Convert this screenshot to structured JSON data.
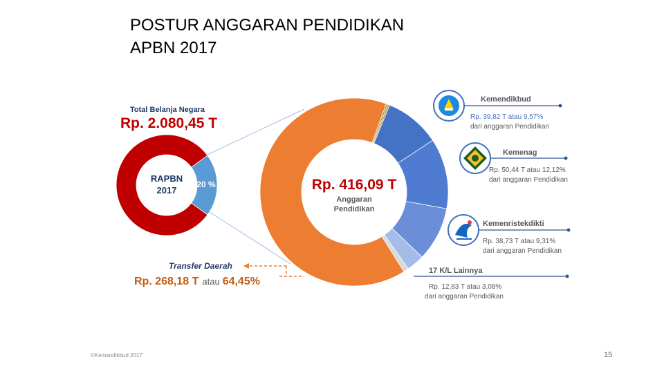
{
  "title": {
    "line1": "POSTUR ANGGARAN PENDIDIKAN",
    "line2": "APBN 2017"
  },
  "colors": {
    "red": "#C00000",
    "light_blue": "#5B9BD5",
    "orange": "#ED7D31",
    "blue1": "#4472C4",
    "blue2": "#4F7BD0",
    "blue3": "#6A8FD8",
    "blue4": "#A4BCE8",
    "navy": "#1F3864",
    "label_orange": "#C55A11",
    "label_blue": "#4472C4",
    "gray_text": "#595959",
    "green_sliver": "#70AD47"
  },
  "chart_data": [
    {
      "type": "pie",
      "subtype": "donut",
      "title": "Total Belanja Negara",
      "title_value": "Rp. 2.080,45 T",
      "center_label": [
        "RAPBN",
        "2017"
      ],
      "slices": [
        {
          "label": "",
          "value": 80
        },
        {
          "label": "20 %",
          "value": 20
        }
      ]
    },
    {
      "type": "pie",
      "subtype": "donut",
      "center_value": "Rp. 416,09 T",
      "center_label": [
        "Anggaran",
        "Pendidikan"
      ],
      "slices": [
        {
          "name": "Transfer Daerah",
          "value": 64.45
        },
        {
          "name": "",
          "value": 0.3
        },
        {
          "name": "",
          "value": 0.3
        },
        {
          "name": "Kemendikbud",
          "value": 9.57
        },
        {
          "name": "Kemenag",
          "value": 12.12
        },
        {
          "name": "Kemenristekdikti",
          "value": 9.31
        },
        {
          "name": "17 K/L Lainnya",
          "value": 3.08
        },
        {
          "name": "",
          "value": 0.87
        }
      ]
    }
  ],
  "callouts": {
    "kemendikbud": {
      "name": "Kemendikbud",
      "line1": "Rp. 39,82 T atau 9,57%",
      "line2": "dari anggaran Pendidikan"
    },
    "kemenag": {
      "name": "Kemenag",
      "line1": "Rp. 50,44 T atau 12,12%",
      "line2": "dari anggaran Pendidikan"
    },
    "kemenristekdikti": {
      "name": "Kemenristekdikti",
      "line1": "Rp. 38,73 T atau 9,31%",
      "line2": "dari anggaran Pendidikan"
    },
    "lainnya": {
      "name": "17 K/L Lainnya",
      "line1": "Rp. 12,83 T atau 3,08%",
      "line2": "dari anggaran Pendidikan"
    },
    "transfer": {
      "name": "Transfer Daerah",
      "value": "Rp. 268,18 T",
      "atau": "atau",
      "pct": "64,45%"
    }
  },
  "icons": {
    "kemendikbud": "tut-wuri-handayani-logo-icon",
    "kemenag": "kemenag-logo-icon",
    "kemenristekdikti": "kemenristekdikti-logo-icon"
  },
  "footer": {
    "copyright": "©Kemendikbud 2017",
    "page": "15"
  }
}
